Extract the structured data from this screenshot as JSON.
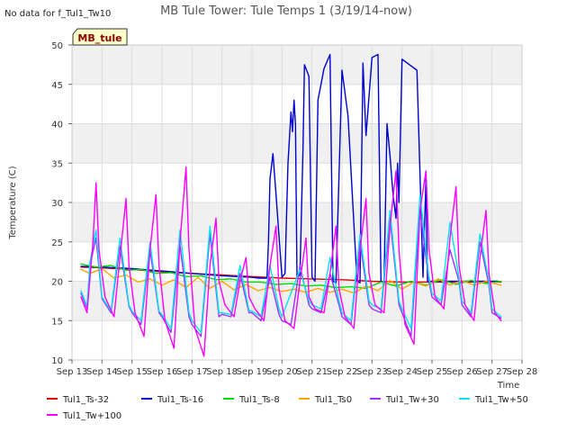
{
  "chart_data": {
    "type": "line",
    "title": "MB Tule Tower: Tule Temps 1 (3/19/14-now)",
    "no_data_note": "No data for f_Tul1_Tw10",
    "badge": "MB_tule",
    "xlabel": "Time",
    "ylabel": "Temperature (C)",
    "ylim": [
      10,
      50
    ],
    "yticks": [
      10,
      15,
      20,
      25,
      30,
      35,
      40,
      45,
      50
    ],
    "xlim": [
      13,
      28
    ],
    "xticks": [
      13,
      14,
      15,
      16,
      17,
      18,
      19,
      20,
      21,
      22,
      23,
      24,
      25,
      26,
      27,
      28
    ],
    "xtick_labels": [
      "Sep 13",
      "Sep 14",
      "Sep 15",
      "Sep 16",
      "Sep 17",
      "Sep 18",
      "Sep 19",
      "Sep 20",
      "Sep 21",
      "Sep 22",
      "Sep 23",
      "Sep 24",
      "Sep 25",
      "Sep 26",
      "Sep 27",
      "Sep 28"
    ],
    "grid": true,
    "legend_position": "bottom",
    "series": [
      {
        "name": "Tul1_Ts-32",
        "color": "#dd0000",
        "x": [
          13.3,
          14,
          15,
          16,
          17,
          18,
          19,
          20,
          21,
          22,
          23,
          24,
          25,
          26,
          27,
          27.3
        ],
        "y": [
          21.8,
          21.7,
          21.5,
          21.2,
          21.0,
          20.8,
          20.6,
          20.4,
          20.3,
          20.2,
          20.0,
          19.9,
          19.9,
          19.9,
          19.9,
          19.9
        ]
      },
      {
        "name": "Tul1_Ts-16",
        "color": "#0000cc",
        "x": [
          13.3,
          14,
          15,
          16,
          17,
          18,
          19,
          19.2,
          19.5,
          19.55,
          19.6,
          19.7,
          19.8,
          20.0,
          20.1,
          20.15,
          20.2,
          20.3,
          20.35,
          20.4,
          20.45,
          20.5,
          20.6,
          20.7,
          20.75,
          20.8,
          20.9,
          21.0,
          21.1,
          21.2,
          21.4,
          21.6,
          21.7,
          21.8,
          22.0,
          22.2,
          22.5,
          22.6,
          22.7,
          22.8,
          23.0,
          23.2,
          23.3,
          23.4,
          23.5,
          23.6,
          23.7,
          23.8,
          23.85,
          23.9,
          24.0,
          24.5,
          24.7,
          24.8,
          24.85,
          24.9,
          25.0,
          25.5,
          25.8,
          26.0,
          26.8,
          26.9,
          27.0,
          27.05,
          27.1,
          27.2
        ],
        "y": [
          21.9,
          21.8,
          21.6,
          21.3,
          21.0,
          20.7,
          20.5,
          20.4,
          20.4,
          25.0,
          33.0,
          36.2,
          31.0,
          20.5,
          21.0,
          28.0,
          35.0,
          41.5,
          39.0,
          43.0,
          40.0,
          20.5,
          20.8,
          37.0,
          47.5,
          47.0,
          46.0,
          20.5,
          20.0,
          43.0,
          47.0,
          48.8,
          20.0,
          19.8,
          46.8,
          41.0,
          20.0,
          19.8,
          47.7,
          38.5,
          48.4,
          48.8,
          20.0,
          19.8,
          40.0,
          36.0,
          31.0,
          28.0,
          35.0,
          30.0,
          48.2,
          46.8,
          20.5,
          33.0,
          20.0,
          20.0,
          20.0,
          20.0,
          20.0,
          20.0,
          20.0,
          20.0,
          20.0,
          20.0,
          20.0,
          20.0
        ]
      },
      {
        "name": "Tul1_Ts-8",
        "color": "#00dd00",
        "x": [
          13.3,
          13.8,
          14.3,
          14.8,
          15.3,
          15.8,
          16.3,
          16.8,
          17.3,
          17.8,
          18.3,
          18.8,
          19.3,
          19.8,
          20.3,
          20.8,
          21.3,
          21.8,
          22.3,
          22.8,
          23.3,
          23.8,
          24.3,
          24.8,
          25.3,
          25.8,
          26.3,
          26.8,
          27.3
        ],
        "y": [
          22.2,
          21.8,
          22.0,
          21.4,
          21.5,
          21.0,
          21.1,
          20.6,
          20.7,
          20.2,
          20.3,
          19.9,
          19.9,
          19.6,
          19.7,
          19.4,
          19.5,
          19.2,
          19.3,
          19.1,
          19.9,
          19.4,
          20.0,
          19.5,
          20.2,
          19.6,
          20.1,
          19.7,
          20.0
        ]
      },
      {
        "name": "Tul1_Ts0",
        "color": "#ffa500",
        "x": [
          13.3,
          13.6,
          14.0,
          14.4,
          14.8,
          15.2,
          15.6,
          16.0,
          16.4,
          16.8,
          17.2,
          17.6,
          18.0,
          18.4,
          18.8,
          19.2,
          19.6,
          20.0,
          20.4,
          20.8,
          21.2,
          21.6,
          22.0,
          22.4,
          22.8,
          23.2,
          23.6,
          24.0,
          24.4,
          24.8,
          25.2,
          25.6,
          26.0,
          26.4,
          26.8,
          27.3
        ],
        "y": [
          21.5,
          21.0,
          21.6,
          20.4,
          20.8,
          19.9,
          20.3,
          19.5,
          20.2,
          19.2,
          20.5,
          19.1,
          20.0,
          18.9,
          19.6,
          18.8,
          19.2,
          18.7,
          19.0,
          18.6,
          19.1,
          18.6,
          19.0,
          18.5,
          19.4,
          18.8,
          20.1,
          19.0,
          19.9,
          19.4,
          20.3,
          19.5,
          20.1,
          19.5,
          20.0,
          19.5
        ]
      },
      {
        "name": "Tul1_Tw+30",
        "color": "#9933ff",
        "x": [
          13.3,
          13.5,
          13.6,
          13.8,
          14.0,
          14.3,
          14.6,
          14.9,
          15.0,
          15.3,
          15.6,
          15.9,
          16.0,
          16.3,
          16.6,
          16.9,
          17.0,
          17.3,
          17.6,
          17.9,
          18.0,
          18.3,
          18.6,
          18.9,
          19.0,
          19.3,
          19.6,
          19.9,
          20.0,
          20.3,
          20.6,
          20.9,
          21.0,
          21.3,
          21.6,
          21.9,
          22.0,
          22.3,
          22.6,
          22.9,
          23.0,
          23.3,
          23.6,
          23.9,
          24.0,
          24.3,
          24.6,
          24.9,
          25.0,
          25.3,
          25.6,
          25.9,
          26.0,
          26.3,
          26.6,
          26.9,
          27.0,
          27.3
        ],
        "y": [
          18.5,
          16.5,
          22.0,
          25.5,
          17.8,
          16.0,
          24.5,
          16.8,
          16.0,
          14.5,
          24.0,
          16.0,
          15.5,
          13.5,
          24.5,
          15.5,
          14.5,
          13.0,
          26.0,
          15.5,
          15.8,
          15.5,
          21.0,
          16.0,
          16.0,
          15.0,
          20.5,
          15.8,
          15.0,
          14.5,
          22.0,
          17.0,
          16.5,
          16.0,
          21.0,
          17.0,
          15.5,
          14.5,
          25.0,
          17.0,
          16.5,
          16.0,
          28.0,
          17.0,
          16.0,
          13.0,
          29.0,
          20.0,
          18.0,
          17.0,
          24.0,
          20.0,
          17.0,
          15.5,
          25.0,
          19.5,
          16.0,
          15.3
        ]
      },
      {
        "name": "Tul1_Tw+50",
        "color": "#00e5ee",
        "x": [
          13.3,
          13.5,
          13.6,
          13.8,
          14.0,
          14.3,
          14.6,
          14.9,
          15.0,
          15.3,
          15.6,
          15.9,
          16.0,
          16.3,
          16.6,
          16.9,
          17.0,
          17.3,
          17.6,
          17.9,
          18.0,
          18.3,
          18.6,
          18.9,
          19.0,
          19.3,
          19.6,
          19.9,
          20.0,
          20.3,
          20.6,
          20.9,
          21.0,
          21.3,
          21.6,
          21.9,
          22.0,
          22.3,
          22.6,
          22.9,
          23.0,
          23.3,
          23.6,
          23.9,
          24.0,
          24.3,
          24.6,
          24.9,
          25.0,
          25.3,
          25.6,
          25.9,
          26.0,
          26.3,
          26.6,
          26.9,
          27.0,
          27.3
        ],
        "y": [
          18.8,
          16.8,
          22.5,
          26.5,
          18.0,
          16.2,
          25.5,
          17.0,
          16.2,
          15.0,
          25.0,
          16.2,
          15.8,
          14.0,
          26.5,
          16.0,
          15.0,
          13.5,
          27.0,
          16.0,
          16.0,
          15.8,
          22.0,
          16.3,
          16.2,
          15.5,
          22.0,
          16.5,
          15.5,
          18.5,
          21.5,
          17.5,
          17.0,
          16.5,
          23.0,
          17.5,
          16.0,
          15.0,
          26.0,
          17.5,
          17.0,
          16.5,
          29.0,
          17.5,
          16.5,
          14.0,
          31.0,
          20.5,
          18.5,
          17.5,
          27.5,
          20.5,
          17.5,
          16.0,
          26.0,
          20.0,
          16.5,
          15.5
        ]
      },
      {
        "name": "Tul1_Tw+100",
        "color": "#ff00ff",
        "x": [
          13.3,
          13.5,
          13.7,
          13.8,
          13.9,
          14.1,
          14.4,
          14.6,
          14.8,
          14.9,
          15.1,
          15.4,
          15.6,
          15.8,
          15.9,
          16.1,
          16.4,
          16.6,
          16.8,
          16.9,
          17.1,
          17.4,
          17.6,
          17.8,
          17.9,
          18.1,
          18.4,
          18.6,
          18.8,
          18.9,
          19.1,
          19.4,
          19.6,
          19.8,
          19.9,
          20.1,
          20.4,
          20.6,
          20.8,
          20.9,
          21.1,
          21.4,
          21.6,
          21.8,
          21.9,
          22.1,
          22.4,
          22.6,
          22.8,
          22.9,
          23.1,
          23.4,
          23.6,
          23.8,
          23.9,
          24.1,
          24.4,
          24.6,
          24.8,
          24.9,
          25.1,
          25.4,
          25.6,
          25.8,
          25.9,
          26.1,
          26.4,
          26.6,
          26.8,
          26.9,
          27.1,
          27.3
        ],
        "y": [
          18.0,
          16.0,
          25.0,
          32.5,
          24.0,
          18.0,
          15.5,
          23.0,
          30.5,
          22.0,
          16.0,
          13.0,
          24.0,
          31.0,
          22.0,
          15.0,
          11.5,
          25.0,
          34.5,
          24.0,
          14.0,
          10.5,
          22.0,
          28.0,
          20.0,
          17.0,
          15.5,
          20.0,
          23.0,
          18.0,
          16.5,
          15.0,
          22.0,
          27.0,
          19.0,
          15.0,
          14.0,
          20.0,
          25.5,
          18.0,
          16.5,
          16.0,
          21.0,
          27.0,
          19.0,
          15.5,
          14.0,
          24.0,
          30.5,
          21.0,
          17.0,
          16.0,
          27.0,
          34.0,
          24.0,
          14.5,
          12.0,
          29.0,
          34.0,
          24.0,
          18.0,
          16.5,
          25.5,
          32.0,
          22.0,
          17.0,
          15.0,
          23.0,
          29.0,
          21.0,
          16.0,
          15.0
        ]
      }
    ]
  }
}
